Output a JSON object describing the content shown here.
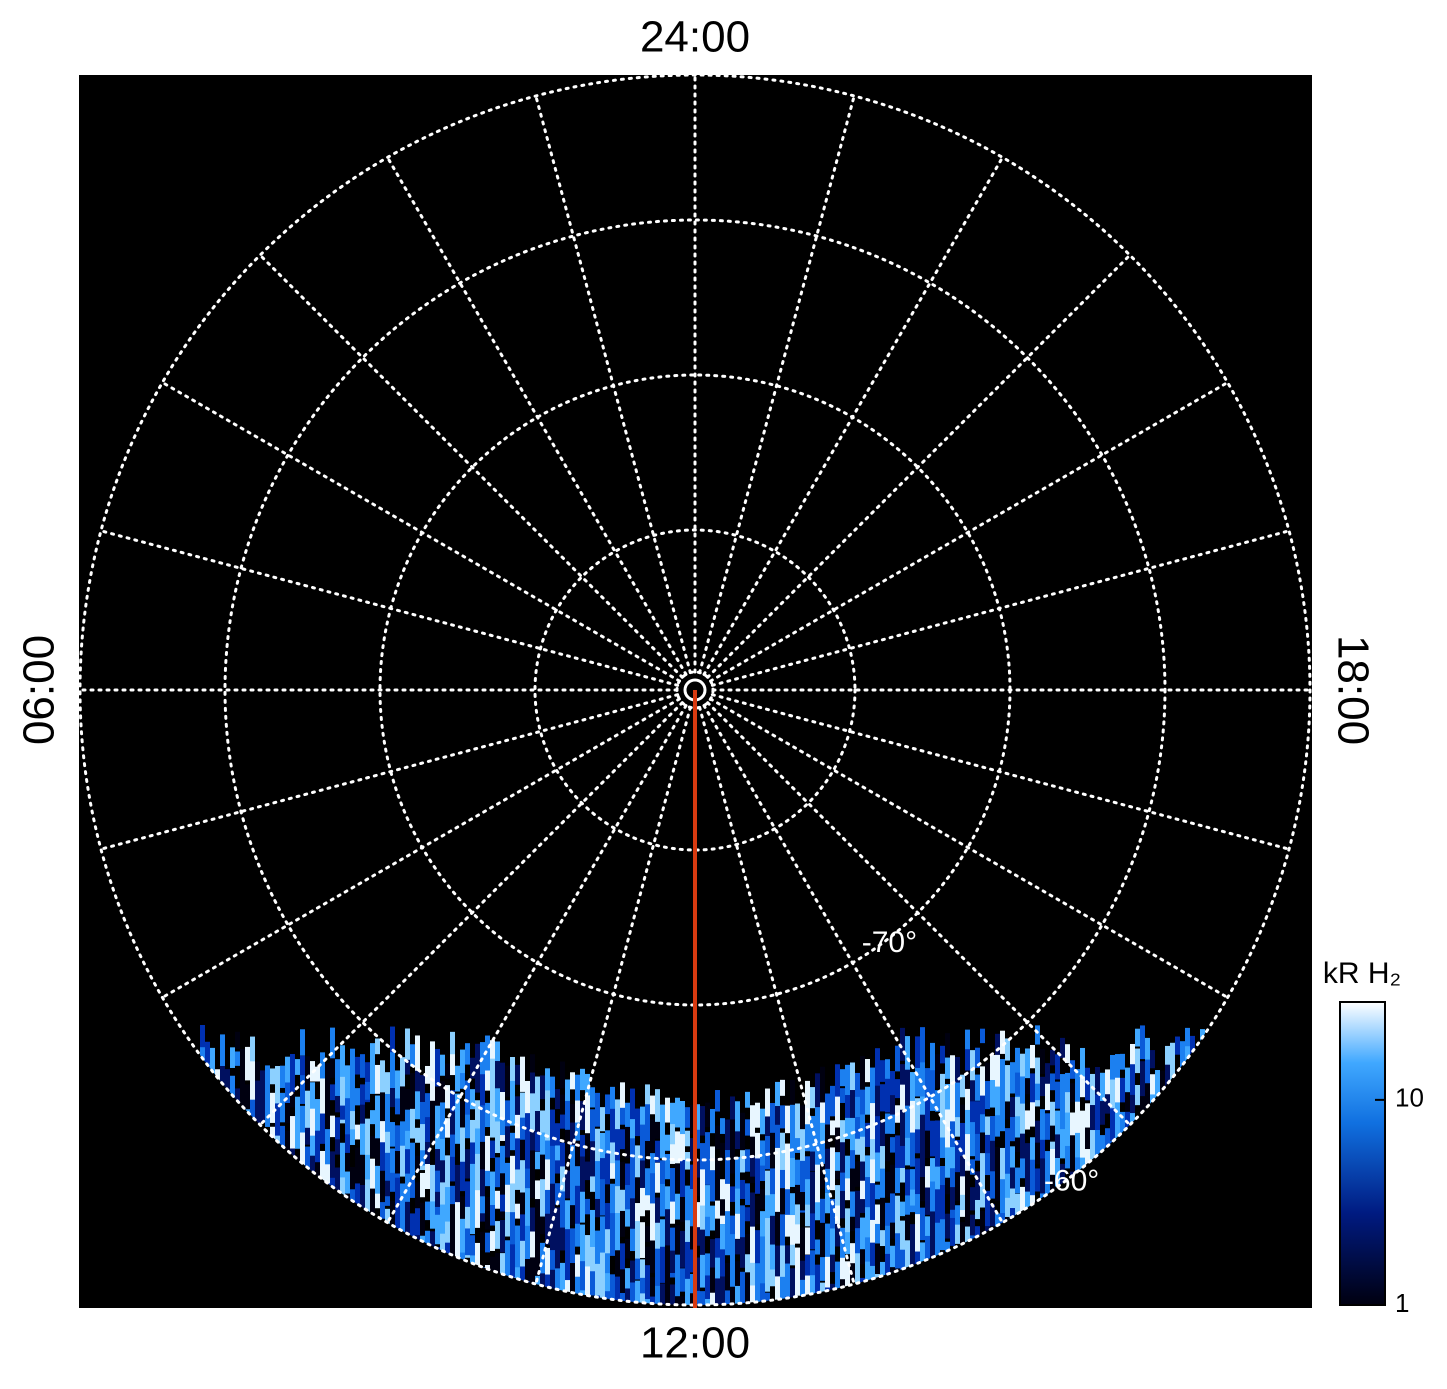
{
  "chart_data": {
    "type": "polar",
    "labels": {
      "top": "24:00",
      "bottom": "12:00",
      "left": "06:00",
      "right": "18:00"
    },
    "lat_labels": [
      {
        "value": -70,
        "label": "-70°"
      },
      {
        "value": -60,
        "label": "-60°"
      }
    ],
    "colorbar": {
      "title": "kR H₂",
      "log": true,
      "ylim": [
        1,
        30
      ],
      "yticks": [
        1,
        10
      ]
    }
  }
}
